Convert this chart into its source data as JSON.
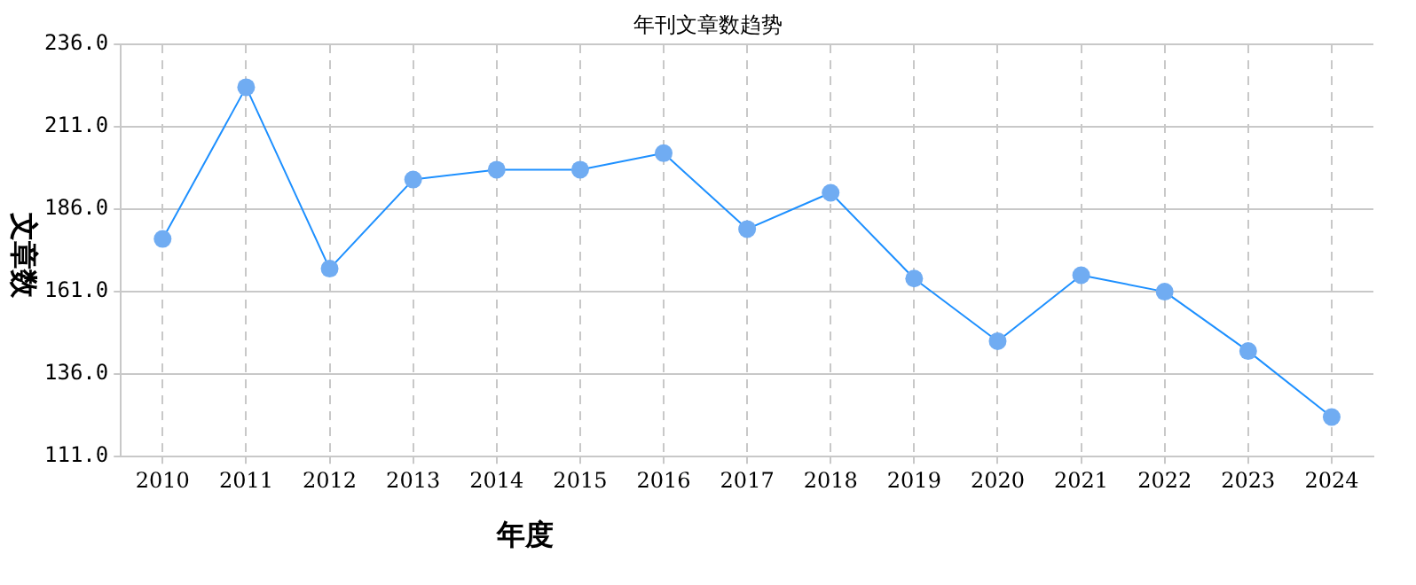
{
  "chart_data": {
    "type": "line",
    "title": "年刊文章数趋势",
    "xlabel": "年度",
    "ylabel": "文章数",
    "categories": [
      "2010",
      "2011",
      "2012",
      "2013",
      "2014",
      "2015",
      "2016",
      "2017",
      "2018",
      "2019",
      "2020",
      "2021",
      "2022",
      "2023",
      "2024"
    ],
    "series": [
      {
        "color": "#1e90ff",
        "values": [
          177,
          223,
          168,
          195,
          198,
          198,
          203,
          180,
          191,
          165,
          146,
          166,
          161,
          143,
          123
        ]
      }
    ],
    "ylim": [
      111,
      236
    ],
    "yticks": [
      {
        "value": 111,
        "label": "111.0"
      },
      {
        "value": 136,
        "label": "136.0"
      },
      {
        "value": 161,
        "label": "161.0"
      },
      {
        "value": 186,
        "label": "186.0"
      },
      {
        "value": 211,
        "label": "211.0"
      },
      {
        "value": 236,
        "label": "236.0"
      }
    ],
    "grid": true,
    "marker": "circle",
    "line_style": "solid",
    "legend": false
  }
}
